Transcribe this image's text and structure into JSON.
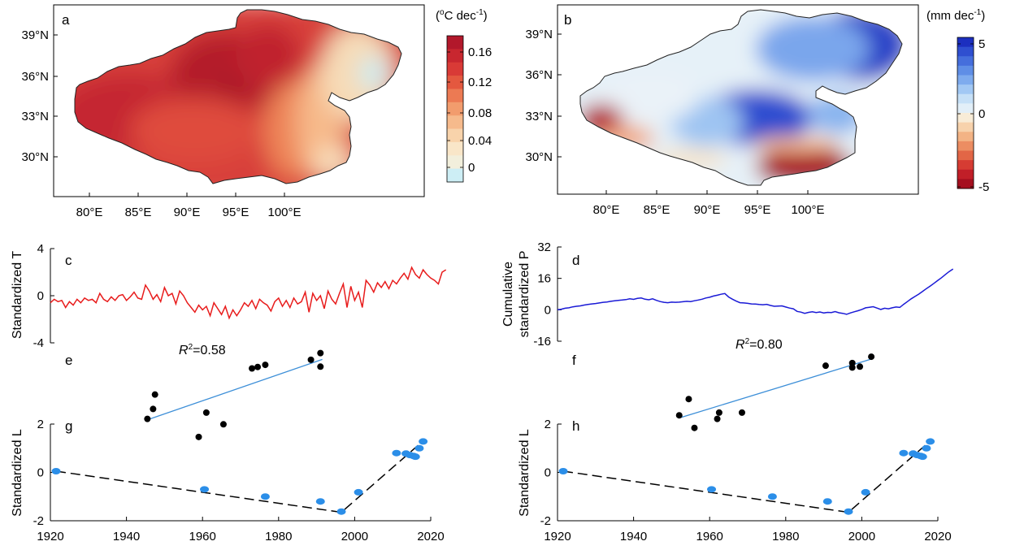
{
  "panels": {
    "a": {
      "label": "a",
      "colorbar": {
        "unit_base": "(",
        "unit_o": "o",
        "unit_mid": "C dec",
        "unit_exp": "-1",
        "unit_end": ")",
        "ticks": [
          "0.16",
          "0.12",
          "0.08",
          "0.04",
          "0"
        ],
        "colors": [
          "#b2182b",
          "#c8272f",
          "#d93a36",
          "#e4583f",
          "#ec7a53",
          "#f29c6d",
          "#f6ba8c",
          "#f8d3ab",
          "#f9e6c8",
          "#f2efdc",
          "#cdeef5"
        ]
      }
    },
    "b": {
      "label": "b",
      "colorbar": {
        "unit_base": "(mm dec",
        "unit_exp": "-1",
        "unit_end": ")",
        "ticks": [
          "5",
          "0",
          "-5"
        ],
        "colors": [
          "#1c2fbf",
          "#2f4fd0",
          "#456edc",
          "#5f8ee6",
          "#7eabee",
          "#a2c8f4",
          "#c6e0f7",
          "#e2eff8",
          "#f8ecd7",
          "#f7d2ac",
          "#f3b385",
          "#ec8d62",
          "#e26646",
          "#d63c33",
          "#c11f28",
          "#a50f1f"
        ]
      }
    },
    "map_axes": {
      "lat_ticks": [
        "39°N",
        "36°N",
        "33°N",
        "30°N"
      ],
      "lon_ticks": [
        "80°E",
        "85°E",
        "90°E",
        "95°E",
        "100°E"
      ]
    },
    "c": {
      "label": "c",
      "ylabel": "Standardized T",
      "yticks": [
        "4",
        "0",
        "-4"
      ]
    },
    "d": {
      "label": "d",
      "ylabel_line1": "Cumulative",
      "ylabel_line2": "standardized P",
      "yticks": [
        "32",
        "16",
        "0",
        "-16"
      ]
    },
    "e": {
      "label": "e",
      "r2_symbol": "R",
      "r2_sup": "2",
      "r2_value": "=0.58"
    },
    "f": {
      "label": "f",
      "r2_symbol": "R",
      "r2_sup": "2",
      "r2_value": "=0.80"
    },
    "g": {
      "label": "g",
      "ylabel": "Standardized L",
      "yticks": [
        "2",
        "0",
        "-2"
      ]
    },
    "h": {
      "label": "h",
      "ylabel": "Standardized L",
      "yticks": [
        "2",
        "0",
        "-2"
      ]
    },
    "time_axis": {
      "xticks": [
        "1920",
        "1940",
        "1960",
        "1980",
        "2000",
        "2020"
      ]
    }
  },
  "chart_data": [
    {
      "type": "line",
      "panel": "c",
      "ylabel": "Standardized T",
      "ylim": [
        -4,
        4
      ],
      "xlim": [
        1920,
        2020
      ],
      "color": "#e81c1c",
      "x_start": 1920,
      "values": [
        -0.6,
        -0.3,
        -0.5,
        -0.4,
        -1.0,
        -0.5,
        -0.8,
        -0.3,
        -0.6,
        -0.2,
        -0.4,
        -0.3,
        -0.6,
        0.2,
        -0.3,
        -0.5,
        -0.1,
        -0.4,
        0.0,
        0.1,
        -0.4,
        -0.1,
        0.3,
        -0.2,
        -0.3,
        0.9,
        0.4,
        -0.3,
        0.1,
        -0.5,
        0.7,
        0.0,
        0.2,
        -0.7,
        0.4,
        0.0,
        -0.6,
        -1.0,
        -1.4,
        -0.8,
        -1.2,
        -0.9,
        -1.7,
        -0.6,
        -1.1,
        -1.6,
        -0.9,
        -1.9,
        -1.2,
        -1.7,
        -1.2,
        -0.6,
        -0.9,
        -0.4,
        -1.1,
        -0.3,
        -0.6,
        -0.8,
        -1.3,
        -0.5,
        -0.2,
        -0.9,
        -0.4,
        -1.0,
        -0.2,
        -0.7,
        -0.5,
        0.3,
        -1.4,
        0.2,
        -0.4,
        0.0,
        -1.1,
        0.4,
        -0.3,
        -0.7,
        0.2,
        1.0,
        -1.0,
        0.8,
        -0.4,
        0.3,
        -1.0,
        1.3,
        0.9,
        0.3,
        1.1,
        0.7,
        1.2,
        0.6,
        1.3,
        1.0,
        1.5,
        1.9,
        1.4,
        2.4,
        1.8,
        1.5,
        2.2,
        1.8,
        1.5,
        1.3,
        1.0,
        2.0,
        2.2
      ]
    },
    {
      "type": "line",
      "panel": "d",
      "ylabel": "Cumulative standardized P",
      "ylim": [
        -16,
        32
      ],
      "xlim": [
        1920,
        2020
      ],
      "color": "#1a1ad6",
      "x_start": 1920,
      "values": [
        0.0,
        0.3,
        0.8,
        1.0,
        1.5,
        1.8,
        2.0,
        2.4,
        2.7,
        3.0,
        3.2,
        3.5,
        3.8,
        4.0,
        4.3,
        4.6,
        4.8,
        5.0,
        5.2,
        5.6,
        5.3,
        5.8,
        6.0,
        5.4,
        5.1,
        5.6,
        4.8,
        4.2,
        3.8,
        3.6,
        3.9,
        3.8,
        3.9,
        4.1,
        4.3,
        4.2,
        4.6,
        5.0,
        5.4,
        6.0,
        6.4,
        7.0,
        7.4,
        7.9,
        8.3,
        6.5,
        5.4,
        4.4,
        3.6,
        3.5,
        3.3,
        3.0,
        2.9,
        2.7,
        2.6,
        2.8,
        2.2,
        1.8,
        1.9,
        2.0,
        1.4,
        0.9,
        0.5,
        -0.8,
        -1.2,
        -1.8,
        -1.3,
        -1.0,
        -1.4,
        -1.1,
        -1.6,
        -1.3,
        -1.4,
        -0.9,
        -1.5,
        -1.8,
        -2.3,
        -1.6,
        -1.0,
        -0.5,
        0.2,
        1.0,
        1.3,
        1.6,
        0.9,
        0.2,
        0.8,
        0.5,
        1.0,
        1.4,
        1.2,
        2.8,
        4.2,
        5.6,
        6.8,
        8.0,
        9.4,
        10.8,
        12.1,
        13.5,
        15.0,
        16.4,
        18.0,
        19.5,
        20.8
      ]
    },
    {
      "type": "scatter",
      "panel": "e",
      "r2": 0.58,
      "x": [
        1945.5,
        1947.0,
        1947.5,
        1959.0,
        1961.0,
        1965.5,
        1973.0,
        1974.5,
        1976.5,
        1988.5,
        1991.0,
        1991.0
      ],
      "y": [
        2.0,
        2.55,
        3.35,
        1.0,
        2.35,
        1.7,
        4.8,
        4.88,
        5.0,
        5.28,
        5.65,
        4.9
      ],
      "ylim": [
        0,
        6.4
      ],
      "fit_x": [
        1945.5,
        1991.5
      ],
      "fit_y": [
        1.95,
        5.3
      ],
      "point_color": "#000000",
      "fit_color": "#3d8fd8"
    },
    {
      "type": "scatter",
      "panel": "f",
      "r2": 0.8,
      "x": [
        1952.0,
        1954.5,
        1956.0,
        1962.0,
        1962.5,
        1968.5,
        1990.5,
        1997.5,
        1997.5,
        1999.5,
        2002.5
      ],
      "y": [
        2.2,
        3.1,
        1.5,
        2.0,
        2.35,
        2.35,
        4.95,
        4.85,
        5.1,
        4.9,
        5.45
      ],
      "ylim": [
        0,
        6.4
      ],
      "fit_x": [
        1952.0,
        2003.0
      ],
      "fit_y": [
        2.05,
        5.35
      ],
      "point_color": "#000000",
      "fit_color": "#3d8fd8"
    },
    {
      "type": "line",
      "panel": "g",
      "ylabel": "Standardized L",
      "ylim": [
        -2,
        2
      ],
      "xlim": [
        1920,
        2020
      ],
      "dashed_x": [
        1921.5,
        1996.5,
        2018.0
      ],
      "dashed_y": [
        0.05,
        -1.65,
        1.3
      ],
      "points_x": [
        1921.5,
        1960.5,
        1976.5,
        1991.0,
        1996.5,
        2001.0,
        2011.0,
        2013.5,
        2014.5,
        2015.5,
        2016.0,
        2017.0,
        2018.0
      ],
      "points_y": [
        0.05,
        -0.7,
        -1.0,
        -1.2,
        -1.62,
        -0.82,
        0.8,
        0.78,
        0.72,
        0.68,
        0.65,
        1.0,
        1.28
      ],
      "point_color": "#2b8ee8"
    },
    {
      "type": "line",
      "panel": "h",
      "ylabel": "Standardized L",
      "ylim": [
        -2,
        2
      ],
      "xlim": [
        1920,
        2020
      ],
      "dashed_x": [
        1921.5,
        1996.5,
        2018.0
      ],
      "dashed_y": [
        0.05,
        -1.65,
        1.3
      ],
      "points_x": [
        1921.5,
        1960.5,
        1976.5,
        1991.0,
        1996.5,
        2001.0,
        2011.0,
        2013.5,
        2014.5,
        2015.5,
        2016.0,
        2017.0,
        2018.0
      ],
      "points_y": [
        0.05,
        -0.7,
        -1.0,
        -1.2,
        -1.62,
        -0.82,
        0.8,
        0.78,
        0.72,
        0.68,
        0.65,
        1.0,
        1.28
      ],
      "point_color": "#2b8ee8"
    }
  ]
}
